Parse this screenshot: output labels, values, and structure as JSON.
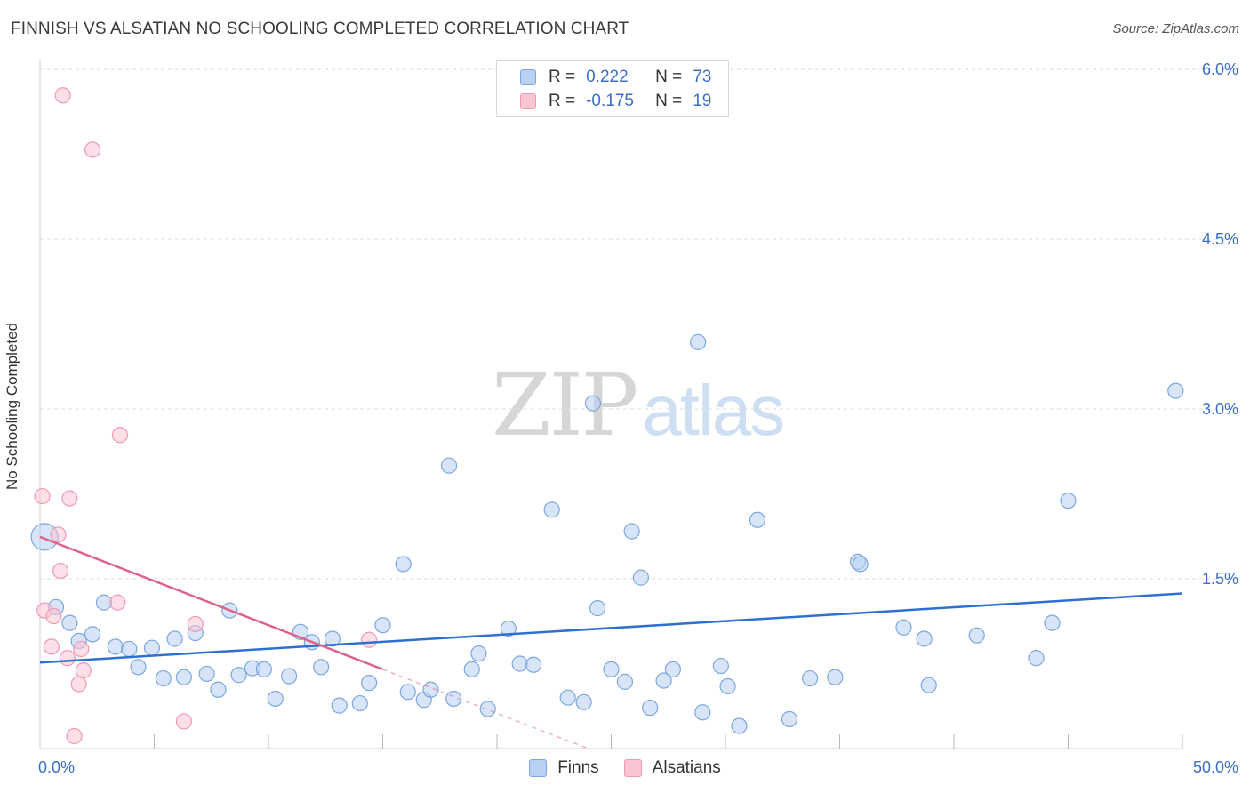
{
  "header": {
    "title": "FINNISH VS ALSATIAN NO SCHOOLING COMPLETED CORRELATION CHART",
    "source": "Source: ZipAtlas.com"
  },
  "watermark": {
    "zip": "ZIP",
    "atlas": "atlas"
  },
  "legend": {
    "rows": [
      {
        "r_label": "R =",
        "r_value": "0.222",
        "n_label": "N =",
        "n_value": "73",
        "color": "#b8d0f3"
      },
      {
        "r_label": "R =",
        "r_value": "-0.175",
        "n_label": "N =",
        "n_value": "19",
        "color": "#fac5d3"
      }
    ]
  },
  "bottom_legend": {
    "finns": "Finns",
    "alsatians": "Alsatians"
  },
  "colors": {
    "finns_fill": "#b8d0f3",
    "finns_stroke": "#7da6e0",
    "finns_line": "#2e6fd0",
    "alsatians_fill": "#fac5d3",
    "alsatians_stroke": "#f09ab2",
    "alsatians_line": "#e0608c",
    "tick_label": "#3b6fc6",
    "grid": "#dddddd"
  },
  "chart_data": {
    "type": "scatter",
    "title": "FINNISH VS ALSATIAN NO SCHOOLING COMPLETED CORRELATION CHART",
    "xlabel": "",
    "ylabel": "No Schooling Completed",
    "xlim": [
      0,
      50
    ],
    "ylim": [
      0,
      6.0
    ],
    "x_tick_labels": [
      "0.0%",
      "50.0%"
    ],
    "y_ticks": [
      1.5,
      3.0,
      4.5,
      6.0
    ],
    "y_tick_labels": [
      "1.5%",
      "3.0%",
      "4.5%",
      "6.0%"
    ],
    "grid": true,
    "series": [
      {
        "name": "Finns",
        "trend": {
          "x": [
            0,
            50
          ],
          "y": [
            0.76,
            1.37
          ]
        },
        "points": [
          {
            "x": 0.2,
            "y": 1.87,
            "big": true
          },
          {
            "x": 0.7,
            "y": 1.25
          },
          {
            "x": 1.3,
            "y": 1.11
          },
          {
            "x": 1.7,
            "y": 0.95
          },
          {
            "x": 2.3,
            "y": 1.01
          },
          {
            "x": 2.8,
            "y": 1.29
          },
          {
            "x": 3.3,
            "y": 0.9
          },
          {
            "x": 3.9,
            "y": 0.88
          },
          {
            "x": 4.3,
            "y": 0.72
          },
          {
            "x": 4.9,
            "y": 0.89
          },
          {
            "x": 5.4,
            "y": 0.62
          },
          {
            "x": 5.9,
            "y": 0.97
          },
          {
            "x": 6.3,
            "y": 0.63
          },
          {
            "x": 6.8,
            "y": 1.02
          },
          {
            "x": 7.3,
            "y": 0.66
          },
          {
            "x": 7.8,
            "y": 0.52
          },
          {
            "x": 8.3,
            "y": 1.22
          },
          {
            "x": 8.7,
            "y": 0.65
          },
          {
            "x": 9.3,
            "y": 0.71
          },
          {
            "x": 9.8,
            "y": 0.7
          },
          {
            "x": 10.3,
            "y": 0.44
          },
          {
            "x": 10.9,
            "y": 0.64
          },
          {
            "x": 11.4,
            "y": 1.03
          },
          {
            "x": 11.9,
            "y": 0.94
          },
          {
            "x": 12.3,
            "y": 0.72
          },
          {
            "x": 12.8,
            "y": 0.97
          },
          {
            "x": 13.1,
            "y": 0.38
          },
          {
            "x": 14.0,
            "y": 0.4
          },
          {
            "x": 14.4,
            "y": 0.58
          },
          {
            "x": 15.0,
            "y": 1.09
          },
          {
            "x": 15.9,
            "y": 1.63
          },
          {
            "x": 16.1,
            "y": 0.5
          },
          {
            "x": 16.8,
            "y": 0.43
          },
          {
            "x": 17.1,
            "y": 0.52
          },
          {
            "x": 17.9,
            "y": 2.5
          },
          {
            "x": 18.1,
            "y": 0.44
          },
          {
            "x": 18.9,
            "y": 0.7
          },
          {
            "x": 19.2,
            "y": 0.84
          },
          {
            "x": 19.6,
            "y": 0.35
          },
          {
            "x": 20.5,
            "y": 1.06
          },
          {
            "x": 21.0,
            "y": 0.75
          },
          {
            "x": 21.6,
            "y": 0.74
          },
          {
            "x": 22.4,
            "y": 2.11
          },
          {
            "x": 23.1,
            "y": 0.45
          },
          {
            "x": 23.8,
            "y": 0.41
          },
          {
            "x": 24.2,
            "y": 3.05
          },
          {
            "x": 24.4,
            "y": 1.24
          },
          {
            "x": 25.0,
            "y": 0.7
          },
          {
            "x": 25.6,
            "y": 0.59
          },
          {
            "x": 25.9,
            "y": 1.92
          },
          {
            "x": 26.3,
            "y": 1.51
          },
          {
            "x": 26.7,
            "y": 0.36
          },
          {
            "x": 27.3,
            "y": 0.6
          },
          {
            "x": 27.7,
            "y": 0.7
          },
          {
            "x": 28.8,
            "y": 3.59
          },
          {
            "x": 29.0,
            "y": 0.32
          },
          {
            "x": 29.8,
            "y": 0.73
          },
          {
            "x": 30.6,
            "y": 0.2
          },
          {
            "x": 31.4,
            "y": 2.02
          },
          {
            "x": 32.8,
            "y": 0.26
          },
          {
            "x": 33.7,
            "y": 0.62
          },
          {
            "x": 34.8,
            "y": 0.63
          },
          {
            "x": 35.8,
            "y": 1.65
          },
          {
            "x": 35.9,
            "y": 1.63
          },
          {
            "x": 37.8,
            "y": 1.07
          },
          {
            "x": 38.7,
            "y": 0.97
          },
          {
            "x": 38.9,
            "y": 0.56
          },
          {
            "x": 41.0,
            "y": 1.0
          },
          {
            "x": 43.6,
            "y": 0.8
          },
          {
            "x": 44.3,
            "y": 1.11
          },
          {
            "x": 45.0,
            "y": 2.19
          },
          {
            "x": 49.7,
            "y": 3.16
          },
          {
            "x": 30.1,
            "y": 0.55
          }
        ]
      },
      {
        "name": "Alsatians",
        "trend": {
          "x": [
            0,
            15
          ],
          "y": [
            1.87,
            0.7
          ]
        },
        "trend_extension": {
          "x": [
            15,
            24
          ],
          "y": [
            0.7,
            0.0
          ]
        },
        "points": [
          {
            "x": 0.1,
            "y": 2.23
          },
          {
            "x": 0.2,
            "y": 1.22
          },
          {
            "x": 0.5,
            "y": 0.9
          },
          {
            "x": 0.6,
            "y": 1.17
          },
          {
            "x": 0.8,
            "y": 1.89
          },
          {
            "x": 0.9,
            "y": 1.57
          },
          {
            "x": 1.0,
            "y": 5.77
          },
          {
            "x": 1.2,
            "y": 0.8
          },
          {
            "x": 1.3,
            "y": 2.21
          },
          {
            "x": 1.5,
            "y": 0.11
          },
          {
            "x": 1.7,
            "y": 0.57
          },
          {
            "x": 1.8,
            "y": 0.88
          },
          {
            "x": 1.9,
            "y": 0.69
          },
          {
            "x": 2.3,
            "y": 5.29
          },
          {
            "x": 3.4,
            "y": 1.29
          },
          {
            "x": 3.5,
            "y": 2.77
          },
          {
            "x": 6.3,
            "y": 0.24
          },
          {
            "x": 6.8,
            "y": 1.1
          },
          {
            "x": 14.4,
            "y": 0.96
          }
        ]
      }
    ]
  }
}
